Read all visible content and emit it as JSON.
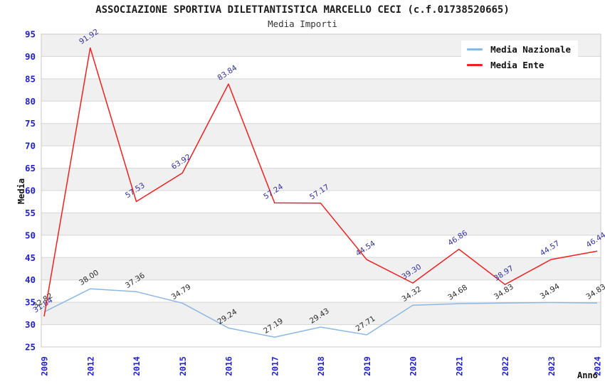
{
  "title": "ASSOCIAZIONE SPORTIVA DILETTANTISTICA MARCELLO CECI (c.f.01738520665)",
  "subtitle": "Media Importi",
  "chart_data": {
    "type": "line",
    "title": "ASSOCIAZIONE SPORTIVA DILETTANTISTICA MARCELLO CECI (c.f.01738520665)",
    "subtitle": "Media Importi",
    "xlabel": "Anno",
    "ylabel": "Media",
    "categories": [
      "2009",
      "2012",
      "2014",
      "2015",
      "2016",
      "2017",
      "2018",
      "2019",
      "2020",
      "2021",
      "2022",
      "2023",
      "2024"
    ],
    "series": [
      {
        "name": "Media Nazionale",
        "color": "#8cb8e2",
        "label_color": "#2b2b2b",
        "values": [
          32.82,
          38.0,
          37.36,
          34.79,
          29.24,
          27.19,
          29.43,
          27.71,
          34.32,
          34.68,
          34.83,
          34.94,
          34.83
        ]
      },
      {
        "name": "Media Ente",
        "color": "#ee2020",
        "label_color": "#333399",
        "values": [
          31.84,
          91.92,
          57.53,
          63.92,
          83.84,
          57.24,
          57.17,
          44.54,
          39.3,
          46.86,
          38.97,
          44.57,
          46.44
        ]
      }
    ],
    "ylim": [
      25,
      95
    ],
    "ytick_step": 5,
    "grid": true,
    "legend_position": "top-right",
    "style": {
      "tick_label_color": "#2121cc",
      "band_color": "#f0f0f0",
      "grid_color": "#d6d6d6",
      "border_color": "#c8c8c8",
      "value_label_rotation_deg": -33
    }
  }
}
